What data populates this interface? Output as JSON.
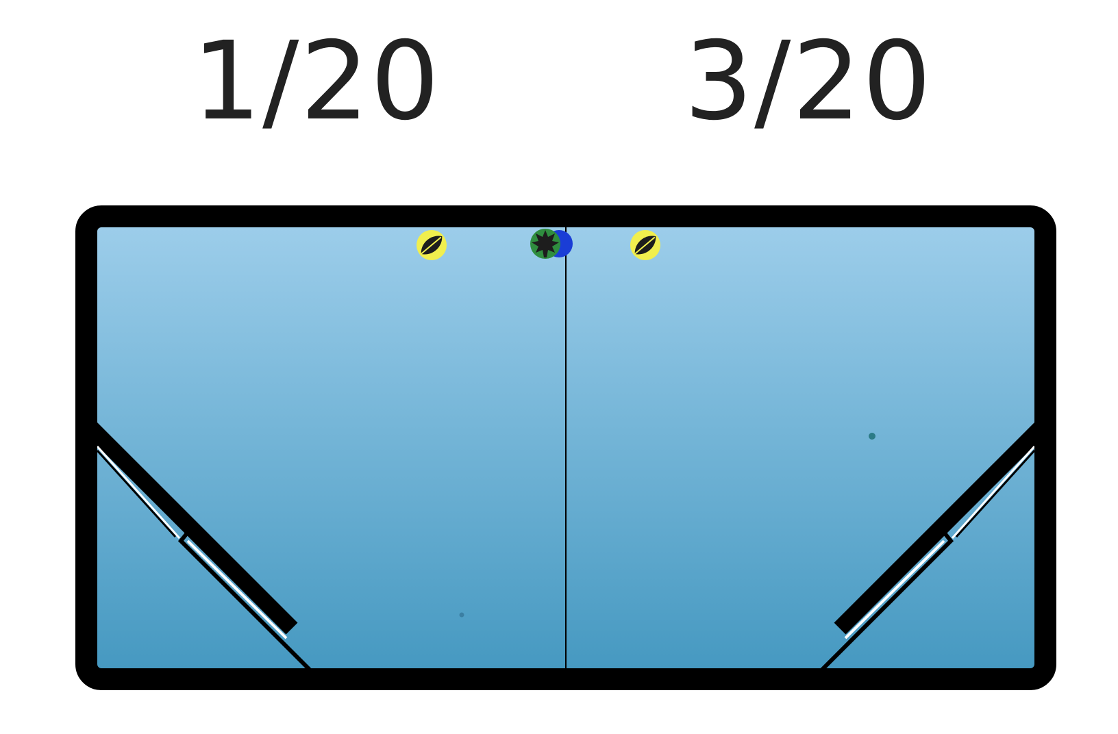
{
  "scores": {
    "left": "1/20",
    "right": "3/20"
  },
  "colors": {
    "frame": "#000000",
    "water_top": "#9ccdea",
    "water_bottom": "#4699c1",
    "divider": "#000000",
    "leaf_token_ring": "#f1ef4e",
    "maple_token_ring": "#2f8d3f",
    "maple_token_accent": "#1a3dd6",
    "leaf_dark": "#1d1d1d",
    "particle": "#3b7fa3",
    "particle_green": "#2c7b86"
  },
  "tokens": {
    "left_leaf": {
      "icon": "leaf-icon"
    },
    "center_maple": {
      "icon": "maple-leaf-icon"
    },
    "right_leaf": {
      "icon": "leaf-icon"
    }
  },
  "flippers": {
    "left": {
      "icon": "left-flipper"
    },
    "right": {
      "icon": "right-flipper"
    }
  }
}
